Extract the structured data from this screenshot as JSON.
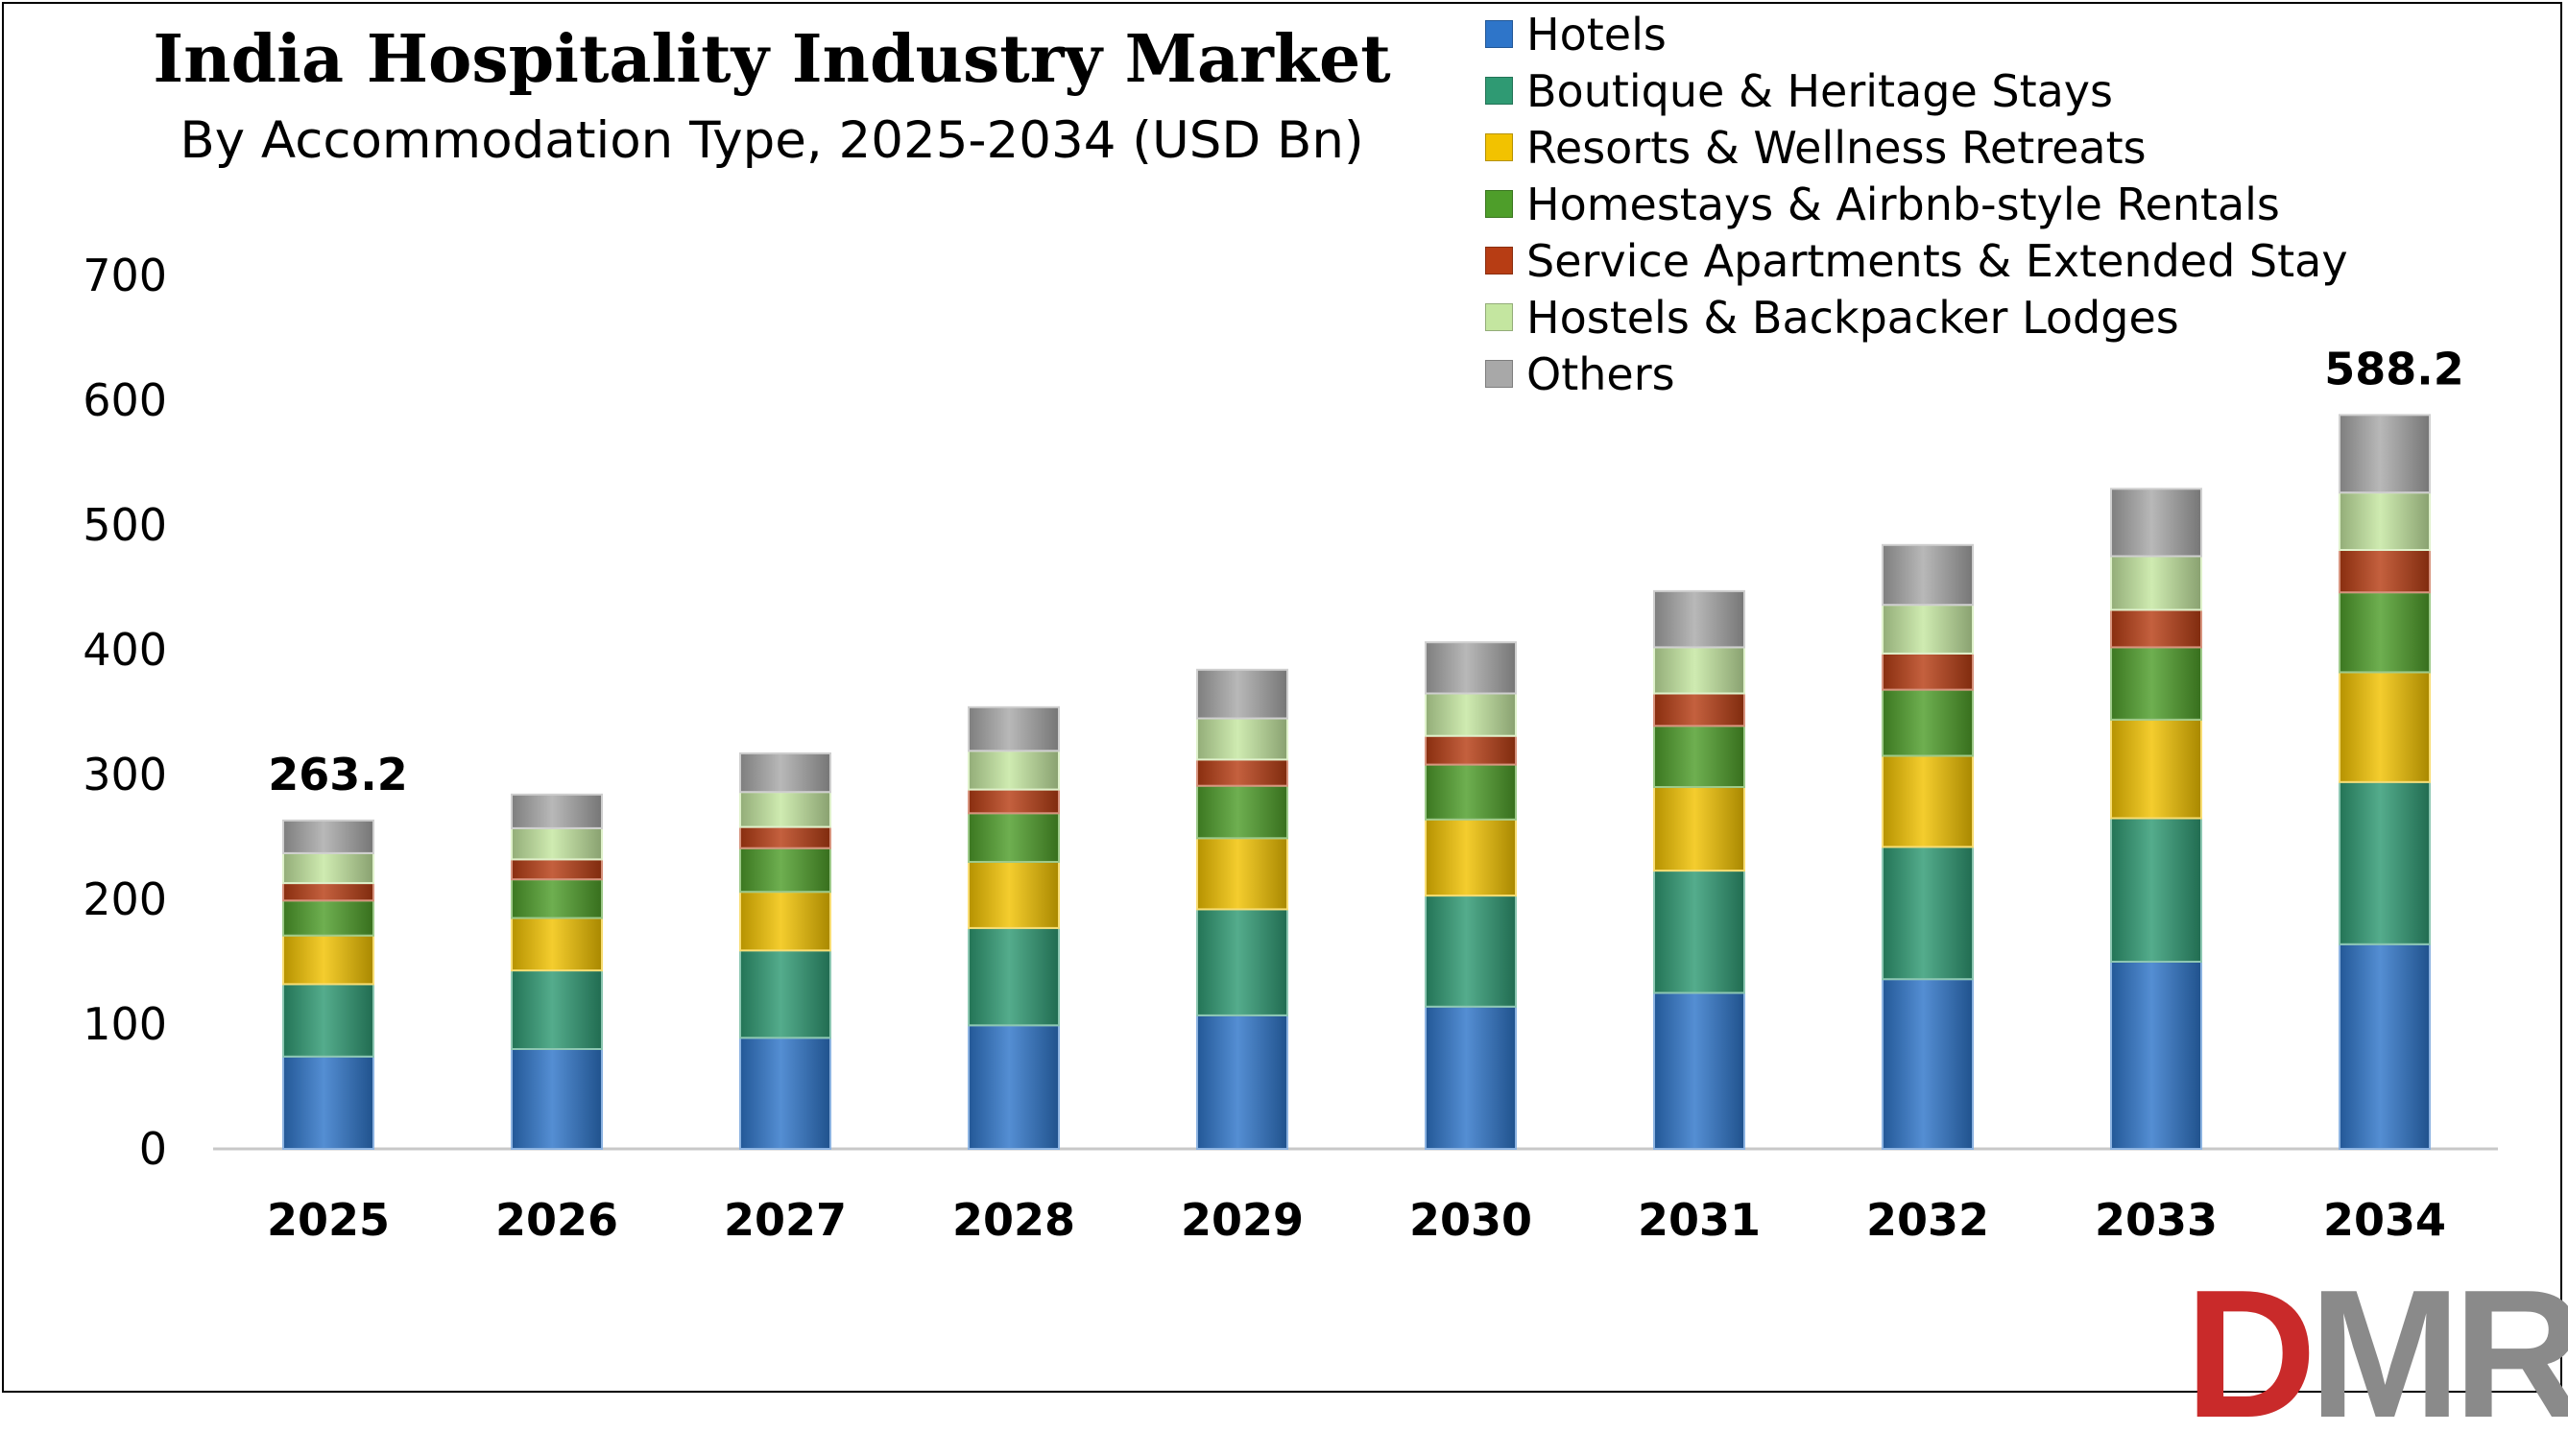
{
  "chart_data": {
    "type": "bar",
    "stacked": true,
    "title": "India Hospitality Industry Market",
    "subtitle": "By Accommodation Type, 2025-2034 (USD Bn)",
    "xlabel": "",
    "ylabel": "",
    "ylim": [
      0,
      700
    ],
    "yticks": [
      0,
      100,
      200,
      300,
      400,
      500,
      600,
      700
    ],
    "categories": [
      "2025",
      "2026",
      "2027",
      "2028",
      "2029",
      "2030",
      "2031",
      "2032",
      "2033",
      "2034"
    ],
    "series": [
      {
        "name": "Hotels",
        "color": "#2e75c9",
        "values": [
          74,
          80,
          89,
          99,
          107,
          114,
          125,
          136,
          150,
          164
        ]
      },
      {
        "name": "Boutique & Heritage Stays",
        "color": "#2f9a73",
        "values": [
          58,
          63,
          70,
          78,
          85,
          89,
          98,
          106,
          115,
          130
        ]
      },
      {
        "name": "Resorts & Wellness Retreats",
        "color": "#f2c200",
        "values": [
          39,
          42,
          47,
          53,
          57,
          61,
          67,
          73,
          79,
          88
        ]
      },
      {
        "name": "Homestays & Airbnb-style Rentals",
        "color": "#4e9e2a",
        "values": [
          28,
          31,
          35,
          39,
          42,
          44,
          49,
          53,
          58,
          64
        ]
      },
      {
        "name": "Service Apartments & Extended Stay",
        "color": "#b73d14",
        "values": [
          14,
          16,
          17,
          19,
          21,
          23,
          26,
          29,
          30,
          34
        ]
      },
      {
        "name": "Hostels & Backpacker Lodges",
        "color": "#c4e6a0",
        "values": [
          24,
          25,
          28,
          31,
          33,
          34,
          37,
          39,
          43,
          46
        ]
      },
      {
        "name": "Others",
        "color": "#a8a8a8",
        "values": [
          26.2,
          27,
          31,
          35,
          39,
          41,
          45,
          48,
          54,
          62.2
        ]
      }
    ],
    "total_labels": [
      {
        "category": "2025",
        "text": "263.2"
      },
      {
        "category": "2034",
        "text": "588.2"
      }
    ],
    "legend_position": "top-right",
    "grid": false
  },
  "logo": {
    "text_d": "D",
    "text_m": "M",
    "text_r": "R"
  }
}
